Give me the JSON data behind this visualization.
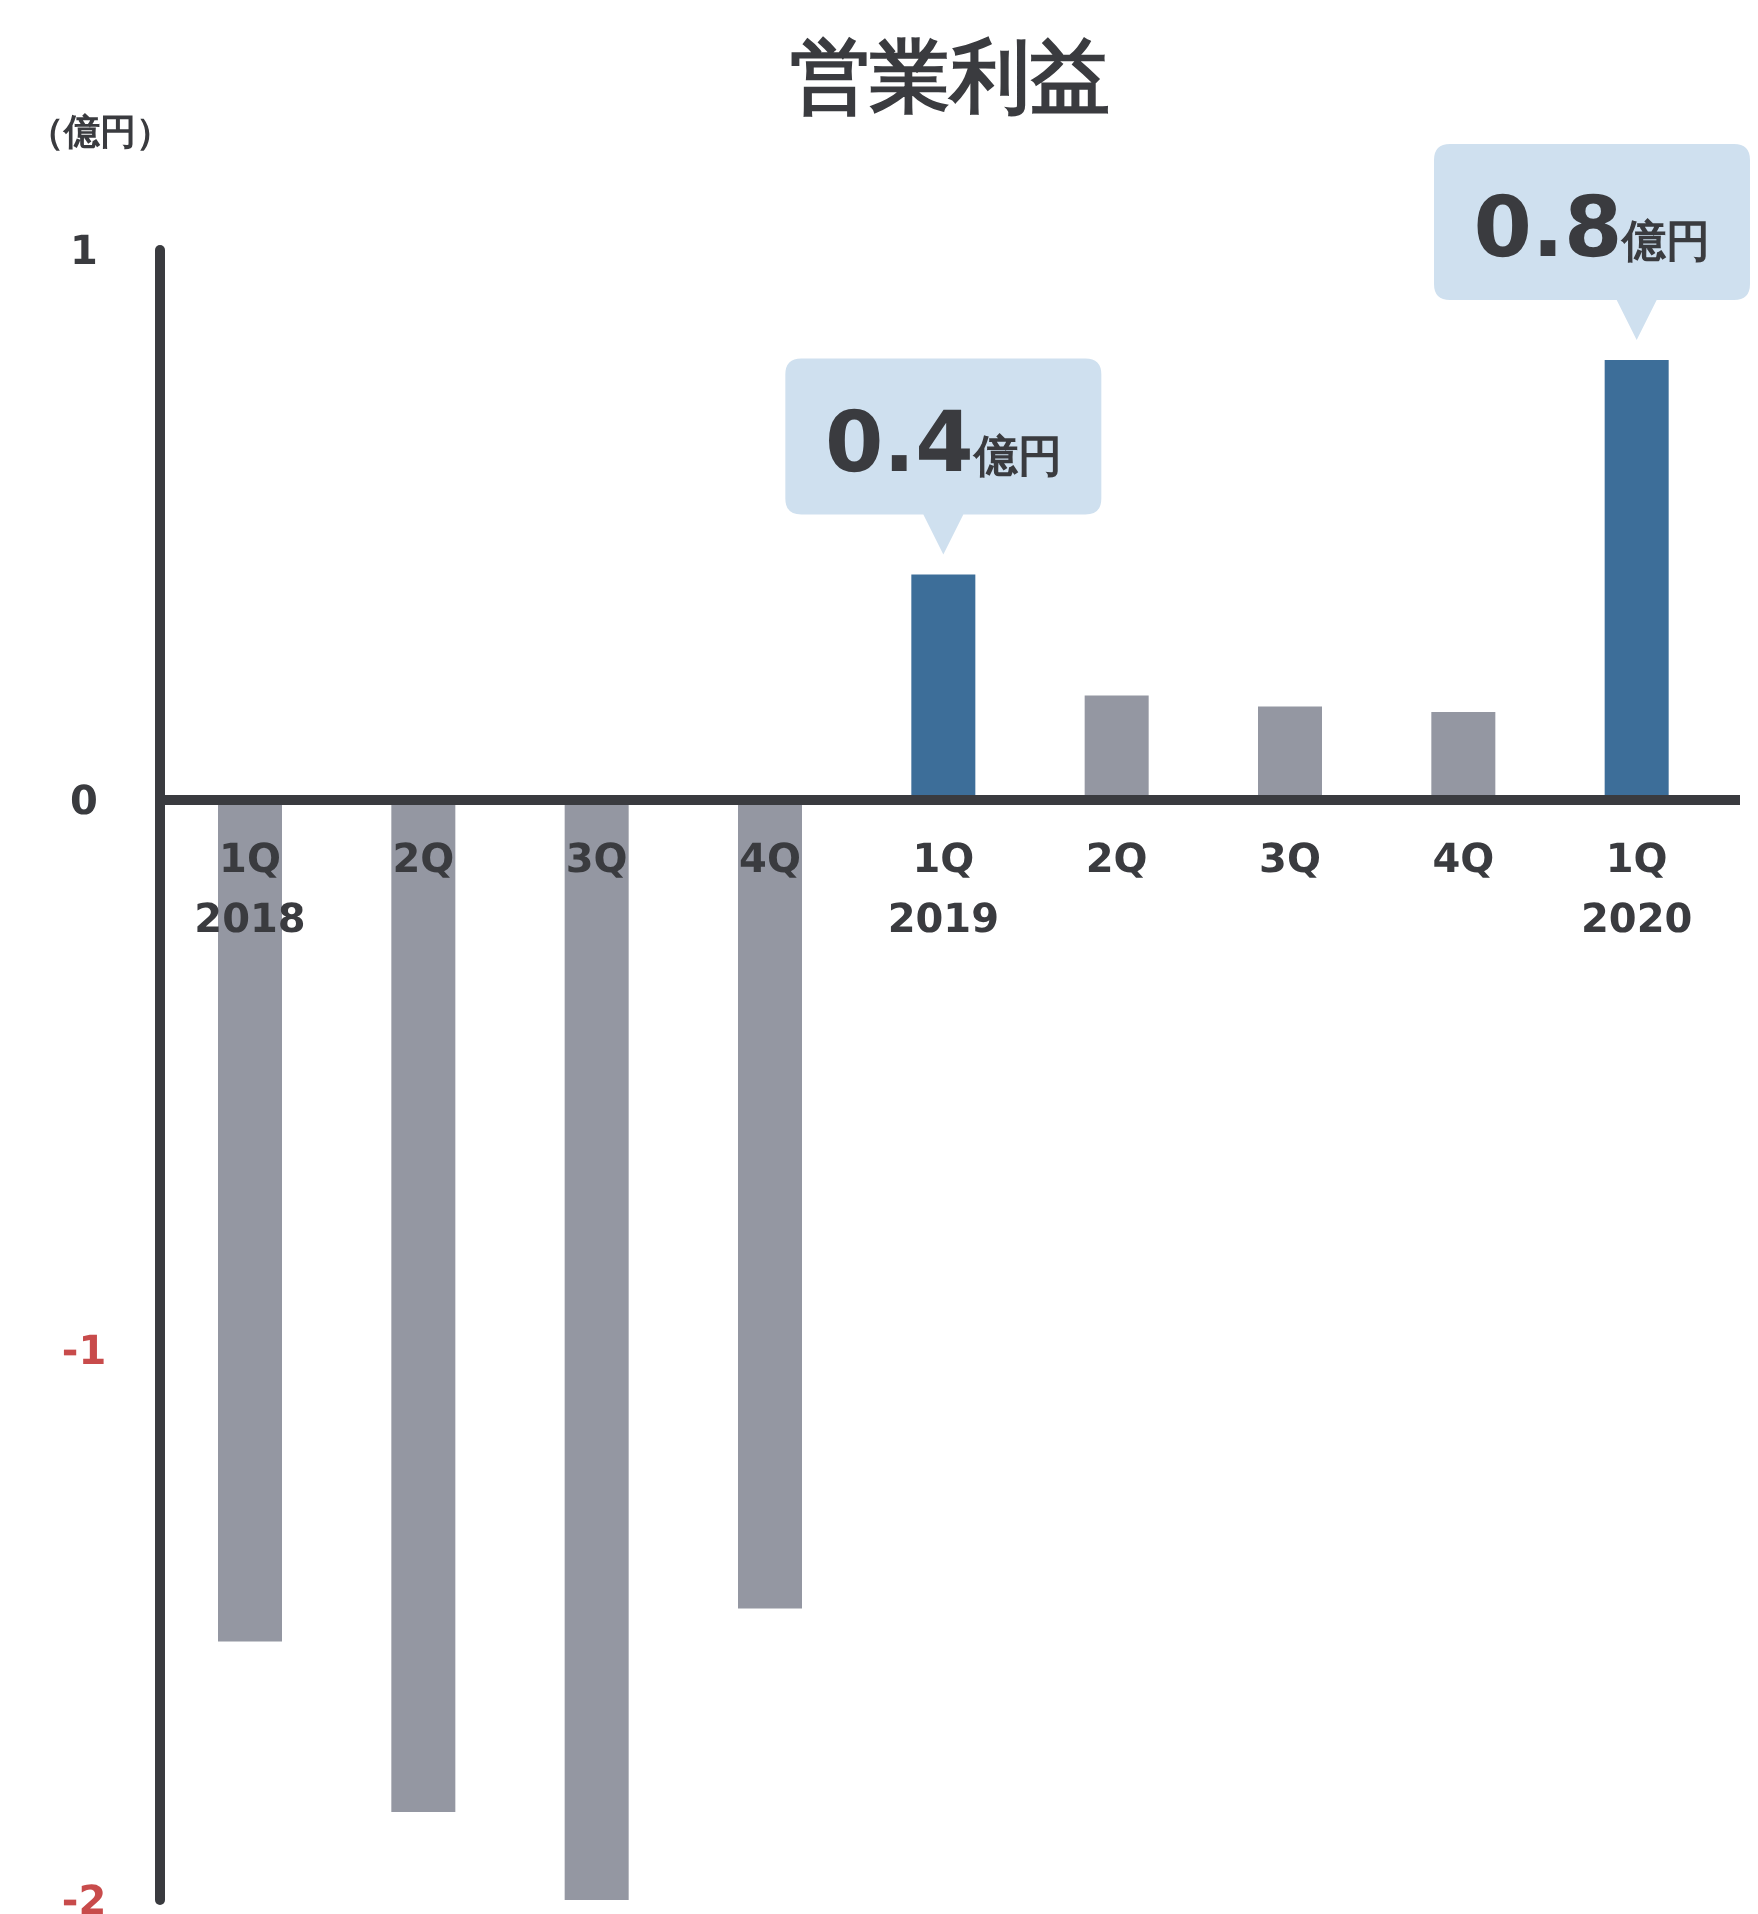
{
  "chart_data": {
    "type": "bar",
    "title": "営業利益",
    "ylabel": "（億円）",
    "categories": [
      "1Q 2018",
      "2Q",
      "3Q",
      "4Q",
      "1Q 2019",
      "2Q",
      "3Q",
      "4Q",
      "1Q 2020"
    ],
    "values": [
      -1.53,
      -1.84,
      -2.0,
      -1.47,
      0.41,
      0.19,
      0.17,
      0.16,
      0.8
    ],
    "colors": [
      "#9497a2",
      "#9497a2",
      "#9497a2",
      "#9497a2",
      "#3d6e99",
      "#9497a2",
      "#9497a2",
      "#9497a2",
      "#3d6e99"
    ],
    "value_labels": [
      null,
      null,
      null,
      null,
      "0.4億円",
      null,
      null,
      null,
      "0.8億円"
    ],
    "ylim": [
      -2,
      1
    ],
    "yticks": [
      -2,
      -1,
      0,
      1
    ]
  }
}
